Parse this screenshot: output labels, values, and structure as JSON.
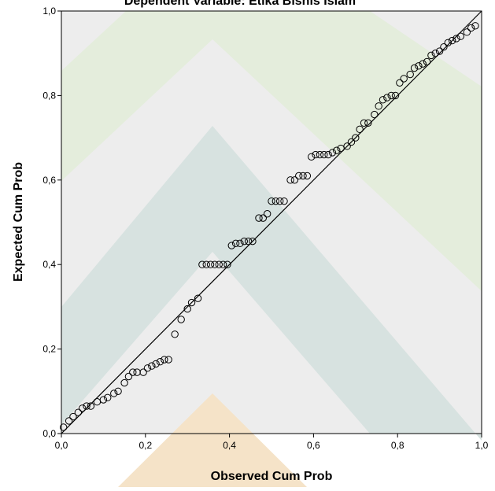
{
  "chart_data": {
    "type": "scatter",
    "title": "Dependent Variable: Etika Bisnis Islam",
    "xlabel": "Observed Cum Prob",
    "ylabel": "Expected Cum Prob",
    "xlim": [
      0,
      1
    ],
    "ylim": [
      0,
      1
    ],
    "x_ticks": [
      "0,0",
      "0,2",
      "0,4",
      "0,6",
      "0,8",
      "1,0"
    ],
    "y_ticks": [
      "0,0",
      "0,2",
      "0,4",
      "0,6",
      "0,8",
      "1,0"
    ],
    "grid": false,
    "legend": "none",
    "reference_line": {
      "from": [
        0,
        0
      ],
      "to": [
        1,
        1
      ]
    },
    "points": [
      {
        "x": 0.005,
        "y": 0.015
      },
      {
        "x": 0.018,
        "y": 0.03
      },
      {
        "x": 0.028,
        "y": 0.04
      },
      {
        "x": 0.04,
        "y": 0.05
      },
      {
        "x": 0.05,
        "y": 0.06
      },
      {
        "x": 0.06,
        "y": 0.065
      },
      {
        "x": 0.07,
        "y": 0.065
      },
      {
        "x": 0.085,
        "y": 0.075
      },
      {
        "x": 0.1,
        "y": 0.08
      },
      {
        "x": 0.11,
        "y": 0.085
      },
      {
        "x": 0.125,
        "y": 0.095
      },
      {
        "x": 0.135,
        "y": 0.1
      },
      {
        "x": 0.15,
        "y": 0.12
      },
      {
        "x": 0.16,
        "y": 0.135
      },
      {
        "x": 0.17,
        "y": 0.145
      },
      {
        "x": 0.18,
        "y": 0.145
      },
      {
        "x": 0.195,
        "y": 0.145
      },
      {
        "x": 0.205,
        "y": 0.155
      },
      {
        "x": 0.215,
        "y": 0.16
      },
      {
        "x": 0.225,
        "y": 0.165
      },
      {
        "x": 0.235,
        "y": 0.17
      },
      {
        "x": 0.245,
        "y": 0.175
      },
      {
        "x": 0.255,
        "y": 0.175
      },
      {
        "x": 0.27,
        "y": 0.235
      },
      {
        "x": 0.285,
        "y": 0.27
      },
      {
        "x": 0.3,
        "y": 0.295
      },
      {
        "x": 0.31,
        "y": 0.31
      },
      {
        "x": 0.325,
        "y": 0.32
      },
      {
        "x": 0.335,
        "y": 0.4
      },
      {
        "x": 0.345,
        "y": 0.4
      },
      {
        "x": 0.355,
        "y": 0.4
      },
      {
        "x": 0.365,
        "y": 0.4
      },
      {
        "x": 0.375,
        "y": 0.4
      },
      {
        "x": 0.385,
        "y": 0.4
      },
      {
        "x": 0.395,
        "y": 0.4
      },
      {
        "x": 0.405,
        "y": 0.445
      },
      {
        "x": 0.415,
        "y": 0.45
      },
      {
        "x": 0.425,
        "y": 0.45
      },
      {
        "x": 0.435,
        "y": 0.455
      },
      {
        "x": 0.445,
        "y": 0.455
      },
      {
        "x": 0.455,
        "y": 0.455
      },
      {
        "x": 0.47,
        "y": 0.51
      },
      {
        "x": 0.48,
        "y": 0.51
      },
      {
        "x": 0.49,
        "y": 0.52
      },
      {
        "x": 0.5,
        "y": 0.55
      },
      {
        "x": 0.51,
        "y": 0.55
      },
      {
        "x": 0.52,
        "y": 0.55
      },
      {
        "x": 0.53,
        "y": 0.55
      },
      {
        "x": 0.545,
        "y": 0.6
      },
      {
        "x": 0.555,
        "y": 0.6
      },
      {
        "x": 0.565,
        "y": 0.61
      },
      {
        "x": 0.575,
        "y": 0.61
      },
      {
        "x": 0.585,
        "y": 0.61
      },
      {
        "x": 0.595,
        "y": 0.655
      },
      {
        "x": 0.605,
        "y": 0.66
      },
      {
        "x": 0.615,
        "y": 0.66
      },
      {
        "x": 0.625,
        "y": 0.66
      },
      {
        "x": 0.635,
        "y": 0.66
      },
      {
        "x": 0.645,
        "y": 0.665
      },
      {
        "x": 0.655,
        "y": 0.67
      },
      {
        "x": 0.665,
        "y": 0.675
      },
      {
        "x": 0.68,
        "y": 0.68
      },
      {
        "x": 0.69,
        "y": 0.69
      },
      {
        "x": 0.7,
        "y": 0.7
      },
      {
        "x": 0.71,
        "y": 0.72
      },
      {
        "x": 0.72,
        "y": 0.735
      },
      {
        "x": 0.73,
        "y": 0.735
      },
      {
        "x": 0.745,
        "y": 0.755
      },
      {
        "x": 0.755,
        "y": 0.775
      },
      {
        "x": 0.765,
        "y": 0.79
      },
      {
        "x": 0.775,
        "y": 0.795
      },
      {
        "x": 0.785,
        "y": 0.8
      },
      {
        "x": 0.795,
        "y": 0.8
      },
      {
        "x": 0.805,
        "y": 0.83
      },
      {
        "x": 0.815,
        "y": 0.84
      },
      {
        "x": 0.83,
        "y": 0.85
      },
      {
        "x": 0.84,
        "y": 0.865
      },
      {
        "x": 0.85,
        "y": 0.87
      },
      {
        "x": 0.86,
        "y": 0.875
      },
      {
        "x": 0.87,
        "y": 0.88
      },
      {
        "x": 0.88,
        "y": 0.895
      },
      {
        "x": 0.89,
        "y": 0.9
      },
      {
        "x": 0.9,
        "y": 0.905
      },
      {
        "x": 0.91,
        "y": 0.915
      },
      {
        "x": 0.92,
        "y": 0.925
      },
      {
        "x": 0.93,
        "y": 0.93
      },
      {
        "x": 0.94,
        "y": 0.935
      },
      {
        "x": 0.95,
        "y": 0.94
      },
      {
        "x": 0.965,
        "y": 0.95
      },
      {
        "x": 0.975,
        "y": 0.96
      },
      {
        "x": 0.985,
        "y": 0.965
      }
    ]
  },
  "colors": {
    "plot_background": "#ededed",
    "watermark_green": "#e4eddc",
    "watermark_teal": "#d7e2e0",
    "watermark_orange": "#f5e3c8",
    "marker_stroke": "#000000",
    "line": "#000000"
  }
}
